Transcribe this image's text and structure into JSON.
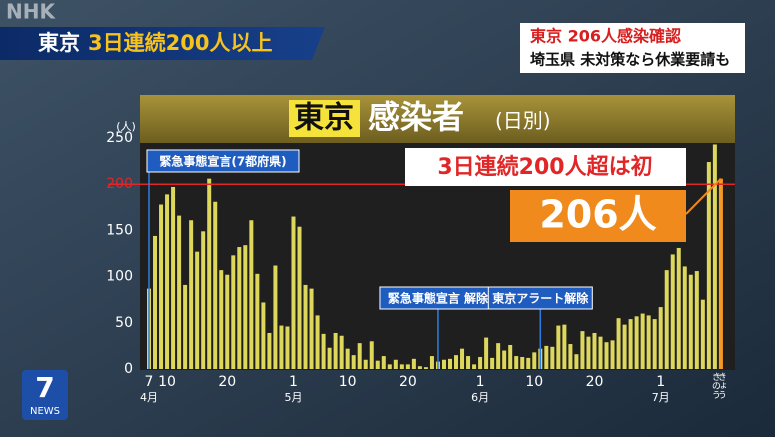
{
  "header": {
    "logo": "NHK",
    "headline_place": "東京",
    "headline": "3日連続200人以上",
    "side_title": "東京 206人感染確認",
    "side_subtitle": "埼玉県 未対策なら休業要請も"
  },
  "program_logo": {
    "number": "7",
    "label": "NEWS"
  },
  "chart_data": {
    "type": "bar",
    "title_place": "東京",
    "title": "感染者",
    "subtitle": "(日別)",
    "y_unit": "(人)",
    "categories": [
      "7",
      null,
      null,
      "10",
      null,
      null,
      null,
      null,
      null,
      null,
      null,
      null,
      null,
      "20",
      null,
      null,
      null,
      null,
      null,
      null,
      null,
      null,
      null,
      null,
      "1",
      null,
      null,
      null,
      null,
      null,
      null,
      null,
      null,
      "10",
      null,
      null,
      null,
      null,
      null,
      null,
      null,
      null,
      null,
      "20",
      null,
      null,
      null,
      null,
      null,
      null,
      null,
      null,
      null,
      null,
      null,
      "1",
      null,
      null,
      null,
      null,
      null,
      null,
      null,
      null,
      "10",
      null,
      null,
      null,
      null,
      null,
      null,
      null,
      null,
      null,
      "20",
      null,
      null,
      null,
      null,
      null,
      null,
      null,
      null,
      null,
      null,
      "1",
      null,
      null,
      null,
      null,
      null,
      null,
      null,
      null,
      "きのう",
      "きょう"
    ],
    "months": [
      "4月",
      null,
      null,
      null,
      null,
      null,
      null,
      null,
      null,
      null,
      null,
      null,
      null,
      null,
      null,
      null,
      null,
      null,
      null,
      null,
      null,
      null,
      null,
      null,
      "5月",
      null,
      null,
      null,
      null,
      null,
      null,
      null,
      null,
      null,
      null,
      null,
      null,
      null,
      null,
      null,
      null,
      null,
      null,
      null,
      null,
      null,
      null,
      null,
      null,
      null,
      null,
      null,
      null,
      null,
      null,
      "6月",
      null,
      null,
      null,
      null,
      null,
      null,
      null,
      null,
      null,
      null,
      null,
      null,
      null,
      null,
      null,
      null,
      null,
      null,
      null,
      null,
      null,
      null,
      null,
      null,
      null,
      null,
      null,
      null,
      null,
      "7月",
      null,
      null,
      null,
      null,
      null,
      null,
      null,
      null,
      null,
      null
    ],
    "values": [
      87,
      144,
      178,
      189,
      197,
      166,
      91,
      161,
      127,
      149,
      206,
      181,
      107,
      102,
      123,
      132,
      134,
      161,
      103,
      72,
      39,
      112,
      47,
      46,
      165,
      154,
      91,
      87,
      58,
      38,
      23,
      39,
      36,
      22,
      15,
      28,
      10,
      30,
      9,
      14,
      5,
      10,
      5,
      5,
      11,
      3,
      2,
      14,
      8,
      10,
      11,
      15,
      22,
      14,
      5,
      13,
      34,
      12,
      28,
      20,
      26,
      14,
      13,
      12,
      18,
      22,
      25,
      24,
      47,
      48,
      27,
      16,
      41,
      35,
      39,
      35,
      29,
      31,
      55,
      48,
      54,
      57,
      60,
      58,
      54,
      67,
      107,
      124,
      131,
      111,
      102,
      106,
      75,
      224,
      243,
      206
    ],
    "color": "#ddd75c",
    "highlight": {
      "index": 95,
      "color": "#f39a25"
    },
    "ylim": [
      0,
      250
    ],
    "yticks": [
      0,
      50,
      100,
      150,
      200,
      250
    ],
    "reference_line": {
      "value": 200,
      "color": "#e02626"
    },
    "annotations": [
      {
        "text": "緊急事態宣言(7都府県)",
        "index": 0
      },
      {
        "text": "緊急事態宣言 解除",
        "index": 48
      },
      {
        "text": "東京アラート解除",
        "index": 65
      }
    ],
    "callouts": [
      {
        "text": "3日連続200人超は初",
        "color": "#e02626"
      },
      {
        "text": "206人",
        "color": "#f08a1c"
      }
    ]
  }
}
